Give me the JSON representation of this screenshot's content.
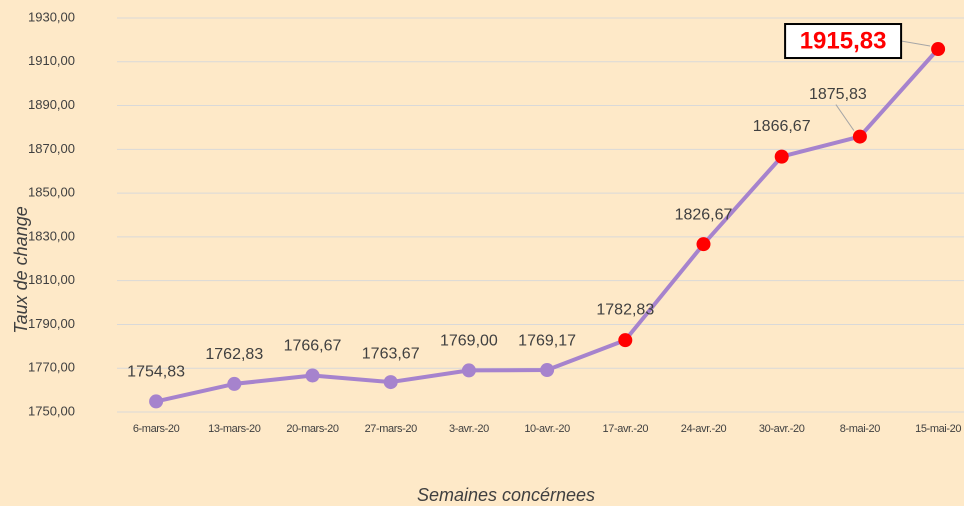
{
  "chart_data": {
    "type": "line",
    "x_label": "Semaines concérnees",
    "y_label": "Taux de change",
    "categories": [
      "6-mars-20",
      "13-mars-20",
      "20-mars-20",
      "27-mars-20",
      "3-avr.-20",
      "10-avr.-20",
      "17-avr.-20",
      "24-avr.-20",
      "30-avr.-20",
      "8-mai-20",
      "15-mai-20"
    ],
    "series": [
      {
        "name": "Taux de change",
        "color": "#a683cd",
        "values": [
          1754.83,
          1762.83,
          1766.67,
          1763.67,
          1769.0,
          1769.17,
          1782.83,
          1826.67,
          1866.67,
          1875.83,
          1915.83
        ],
        "value_labels": [
          "1754,83",
          "1762,83",
          "1766,67",
          "1763,67",
          "1769,00",
          "1769,17",
          "1782,83",
          "1826,67",
          "1866,67",
          "1875,83",
          "1915,83"
        ],
        "point_colors": [
          "#a683cd",
          "#a683cd",
          "#a683cd",
          "#a683cd",
          "#a683cd",
          "#a683cd",
          "#ff0000",
          "#ff0000",
          "#ff0000",
          "#ff0000",
          "#ff0000"
        ]
      }
    ],
    "ylim": [
      1750,
      1930
    ],
    "yticks": [
      {
        "value": 1750,
        "label": "1750,00"
      },
      {
        "value": 1770,
        "label": "1770,00"
      },
      {
        "value": 1790,
        "label": "1790,00"
      },
      {
        "value": 1810,
        "label": "1810,00"
      },
      {
        "value": 1830,
        "label": "1830,00"
      },
      {
        "value": 1850,
        "label": "1850,00"
      },
      {
        "value": 1870,
        "label": "1870,00"
      },
      {
        "value": 1890,
        "label": "1890,00"
      },
      {
        "value": 1910,
        "label": "1910,00"
      },
      {
        "value": 1930,
        "label": "1930,00"
      }
    ],
    "grid": true
  }
}
